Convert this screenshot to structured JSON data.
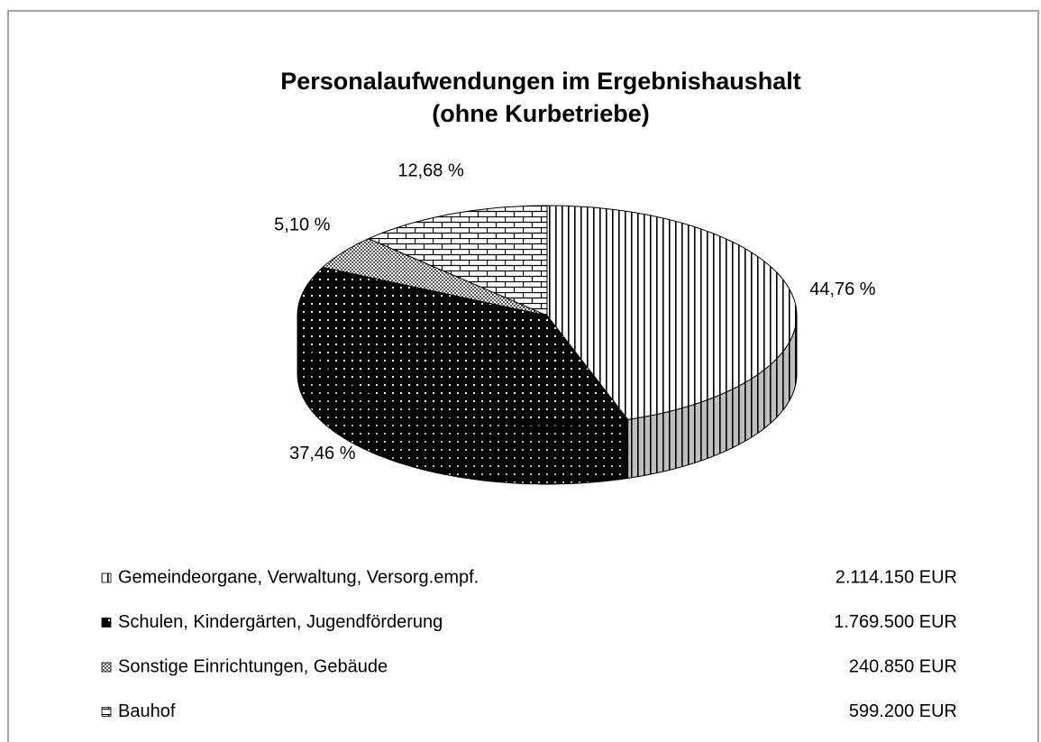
{
  "chart_data": {
    "type": "pie",
    "title": "Personalaufwendungen im Ergebnishaushalt",
    "subtitle": "(ohne Kurbetriebe)",
    "categories": [
      "Gemeindeorgane, Verwaltung, Versorg.empf.",
      "Schulen, Kindergärten, Jugendförderung",
      "Sonstige Einrichtungen, Gebäude",
      "Bauhof"
    ],
    "values": [
      44.76,
      37.46,
      5.1,
      12.68
    ],
    "value_labels": [
      "44,76 %",
      "37,46 %",
      "5,10 %",
      "12,68 %"
    ],
    "amounts": [
      2114150,
      1769500,
      240850,
      599200
    ],
    "amount_labels": [
      "2.114.150 EUR",
      "1.769.500 EUR",
      "240.850 EUR",
      "599.200 EUR"
    ],
    "legend": "bottom"
  }
}
